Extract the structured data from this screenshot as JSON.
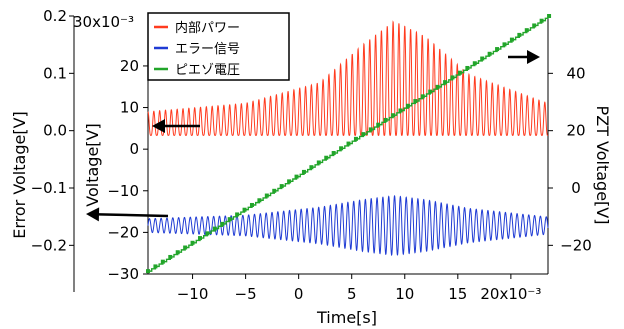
{
  "chart_data": {
    "type": "line",
    "xlabel": "Time[s]",
    "x_ticks": [
      "−10",
      "−5",
      "0",
      "5",
      "10",
      "15",
      "20x10⁻³"
    ],
    "x_tick_values": [
      -0.01,
      -0.005,
      0,
      0.005,
      0.01,
      0.015,
      0.02
    ],
    "xlim": [
      -0.0142,
      0.0235
    ],
    "axes": {
      "error_voltage": {
        "label": "Error Voltage[V]",
        "ticks": [
          "0.2",
          "0.1",
          "0.0",
          "−0.1",
          "−0.2"
        ],
        "tick_values": [
          0.2,
          0.1,
          0.0,
          -0.1,
          -0.2
        ],
        "ylim": [
          -0.25,
          0.2
        ]
      },
      "voltage": {
        "label": "Voltage[V]",
        "multiplier": "30x10⁻³",
        "ticks": [
          "20",
          "10",
          "0",
          "−10",
          "−20",
          "−30"
        ],
        "tick_values": [
          0.02,
          0.01,
          0,
          -0.01,
          -0.02,
          -0.03
        ],
        "ylim": [
          -0.03,
          0.032
        ]
      },
      "pzt_voltage": {
        "label": "PZT Voltage[V]",
        "ticks": [
          "40",
          "20",
          "0",
          "−20"
        ],
        "tick_values": [
          40,
          20,
          0,
          -20
        ],
        "ylim": [
          -30,
          60
        ]
      }
    },
    "series": [
      {
        "name": "内部パワー",
        "color": "#ff3b1f",
        "axis": "voltage",
        "shape": "oscillation",
        "baseline": 0.0033,
        "peak_envelope_x": [
          -0.0142,
          -0.005,
          0.002,
          0.006,
          0.009,
          0.012,
          0.016,
          0.0235
        ],
        "peak_envelope_y": [
          0.009,
          0.011,
          0.016,
          0.025,
          0.0308,
          0.027,
          0.018,
          0.011
        ],
        "period": 0.00055
      },
      {
        "name": "エラー信号",
        "color": "#1f3bd4",
        "axis": "error_voltage",
        "shape": "oscillation",
        "center": -0.1655,
        "amplitude_envelope_x": [
          -0.0142,
          -0.005,
          0.002,
          0.006,
          0.009,
          0.012,
          0.016,
          0.0235
        ],
        "amplitude_envelope_y": [
          0.012,
          0.018,
          0.032,
          0.045,
          0.052,
          0.045,
          0.03,
          0.015
        ],
        "period": 0.00055
      },
      {
        "name": "ピエゾ電圧",
        "color": "#22a52a",
        "axis": "pzt_voltage",
        "shape": "staircase",
        "x": [
          -0.0142,
          0.0235
        ],
        "y": [
          -29,
          60
        ],
        "step": 0.00035
      }
    ],
    "legend": "top-center",
    "annotations": [
      {
        "shape": "arrow",
        "direction": "left",
        "target_axis": "error_voltage",
        "near_series": "内部パワー"
      },
      {
        "shape": "arrow",
        "direction": "left",
        "target_axis": "error_voltage",
        "near_series": "エラー信号"
      },
      {
        "shape": "arrow",
        "direction": "right",
        "target_axis": "pzt_voltage",
        "near_series": "ピエゾ電圧"
      }
    ]
  }
}
